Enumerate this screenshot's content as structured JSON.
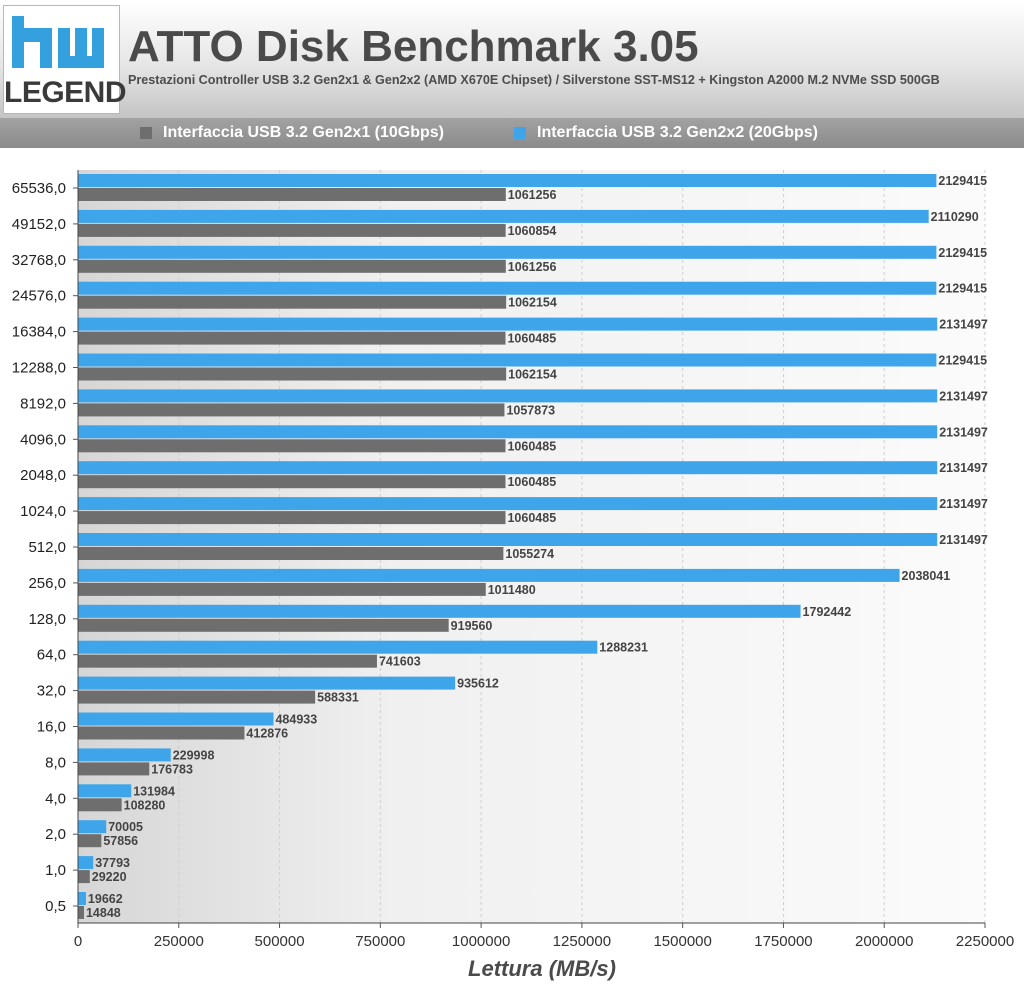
{
  "header": {
    "logo_text": "LEGEND",
    "title": "ATTO Disk Benchmark 3.05",
    "subtitle": "Prestazioni Controller USB 3.2 Gen2x1 & Gen2x2 (AMD X670E Chipset) / Silverstone SST-MS12 + Kingston A2000 M.2 NVMe SSD 500GB"
  },
  "colors": {
    "gen2x1": "#6e6e6e",
    "gen2x2": "#3ea5ea",
    "logo_accent": "#34a0de",
    "grid": "#cfcfcf"
  },
  "chart_data": {
    "type": "bar",
    "orientation": "horizontal",
    "xlabel": "Lettura (MB/s)",
    "ylabel": "",
    "xlim": [
      0,
      2250000
    ],
    "xticks": [
      0,
      250000,
      500000,
      750000,
      1000000,
      1250000,
      1500000,
      1750000,
      2000000,
      2250000
    ],
    "grid": true,
    "legend_position": "top",
    "categories": [
      "65536,0",
      "49152,0",
      "32768,0",
      "24576,0",
      "16384,0",
      "12288,0",
      "8192,0",
      "4096,0",
      "2048,0",
      "1024,0",
      "512,0",
      "256,0",
      "128,0",
      "64,0",
      "32,0",
      "16,0",
      "8,0",
      "4,0",
      "2,0",
      "1,0",
      "0,5"
    ],
    "series": [
      {
        "name": "Interfaccia USB 3.2 Gen2x1 (10Gbps)",
        "color": "#6e6e6e",
        "values": [
          1061256,
          1060854,
          1061256,
          1062154,
          1060485,
          1062154,
          1057873,
          1060485,
          1060485,
          1060485,
          1055274,
          1011480,
          919560,
          741603,
          588331,
          412876,
          176783,
          108280,
          57856,
          29220,
          14848
        ]
      },
      {
        "name": "Interfaccia USB 3.2 Gen2x2 (20Gbps)",
        "color": "#3ea5ea",
        "values": [
          2129415,
          2110290,
          2129415,
          2129415,
          2131497,
          2129415,
          2131497,
          2131497,
          2131497,
          2131497,
          2131497,
          2038041,
          1792442,
          1288231,
          935612,
          484933,
          229998,
          131984,
          70005,
          37793,
          19662
        ]
      }
    ]
  }
}
